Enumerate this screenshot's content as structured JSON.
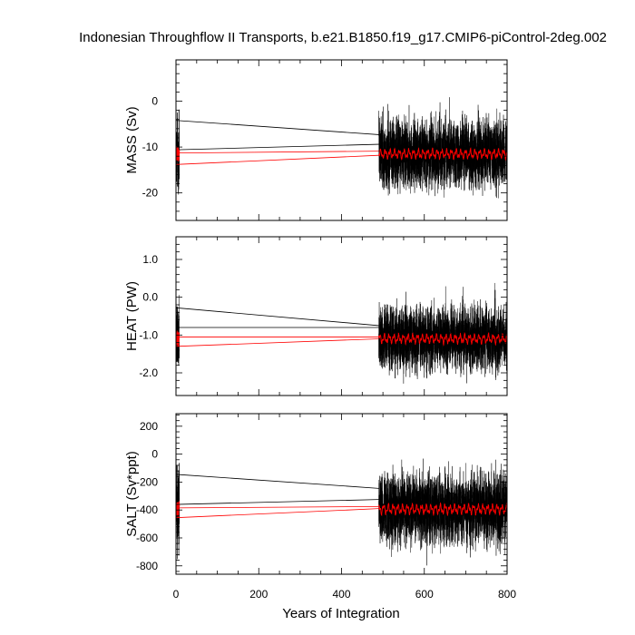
{
  "chart_data": {
    "title": "Indonesian Throughflow II Transports, b.e21.B1850.f19_g17.CMIP6-piControl-2deg.002",
    "xlabel": "Years of Integration",
    "xlim": [
      0,
      800
    ],
    "xticks": [
      "0",
      "200",
      "400",
      "600",
      "800"
    ],
    "colors": {
      "raw": "#000000",
      "smooth": "#ff0000"
    },
    "panels": [
      {
        "type": "line",
        "ylabel": "MASS (Sv)",
        "ylim": [
          -26,
          9
        ],
        "yticks": [
          {
            "v": 0,
            "label": "0"
          },
          {
            "v": -10,
            "label": "-10"
          },
          {
            "v": -20,
            "label": "-20"
          }
        ],
        "series": [
          {
            "role": "raw",
            "data_start": [
              [
                0,
                -16
              ],
              [
                8,
                -8
              ]
            ],
            "mean": -11.5,
            "amp": 4.0,
            "min": -23,
            "max": 8
          },
          {
            "role": "smooth",
            "mean": -11.5,
            "amp": 1.0
          }
        ],
        "connector_lines": [
          {
            "color": "raw",
            "x": [
              0,
              490
            ],
            "y": [
              -4.2,
              -7.3
            ]
          },
          {
            "color": "raw",
            "x": [
              0,
              490
            ],
            "y": [
              -10.6,
              -9.4
            ]
          },
          {
            "color": "smooth",
            "x": [
              0,
              490
            ],
            "y": [
              -11.3,
              -10.9
            ]
          },
          {
            "color": "smooth",
            "x": [
              0,
              490
            ],
            "y": [
              -13.8,
              -11.8
            ]
          }
        ]
      },
      {
        "type": "line",
        "ylabel": "HEAT (PW)",
        "ylim": [
          -2.6,
          1.6
        ],
        "yticks": [
          {
            "v": 1.0,
            "label": "1.0"
          },
          {
            "v": 0.0,
            "label": "0.0"
          },
          {
            "v": -1.0,
            "label": "-1.0"
          },
          {
            "v": -2.0,
            "label": "-2.0"
          }
        ],
        "series": [
          {
            "role": "raw",
            "mean": -1.1,
            "amp": 0.45,
            "min": -2.55,
            "max": 1.45
          },
          {
            "role": "smooth",
            "mean": -1.1,
            "amp": 0.12
          }
        ],
        "connector_lines": [
          {
            "color": "raw",
            "x": [
              0,
              490
            ],
            "y": [
              -0.28,
              -0.75
            ]
          },
          {
            "color": "raw",
            "x": [
              0,
              490
            ],
            "y": [
              -0.8,
              -0.8
            ]
          },
          {
            "color": "smooth",
            "x": [
              0,
              490
            ],
            "y": [
              -1.05,
              -1.05
            ]
          },
          {
            "color": "smooth",
            "x": [
              0,
              490
            ],
            "y": [
              -1.3,
              -1.1
            ]
          }
        ]
      },
      {
        "type": "line",
        "ylabel": "SALT (Sv*ppt)",
        "ylim": [
          -860,
          290
        ],
        "yticks": [
          {
            "v": 200,
            "label": "200"
          },
          {
            "v": 0,
            "label": "0"
          },
          {
            "v": -200,
            "label": "-200"
          },
          {
            "v": -400,
            "label": "-400"
          },
          {
            "v": -600,
            "label": "-600"
          },
          {
            "v": -800,
            "label": "-800"
          }
        ],
        "series": [
          {
            "role": "raw",
            "mean": -395,
            "amp": 140,
            "min": -800,
            "max": 260
          },
          {
            "role": "smooth",
            "mean": -395,
            "amp": 35
          }
        ],
        "connector_lines": [
          {
            "color": "raw",
            "x": [
              0,
              490
            ],
            "y": [
              -145,
              -245
            ]
          },
          {
            "color": "raw",
            "x": [
              0,
              490
            ],
            "y": [
              -360,
              -325
            ]
          },
          {
            "color": "smooth",
            "x": [
              0,
              490
            ],
            "y": [
              -385,
              -375
            ]
          },
          {
            "color": "smooth",
            "x": [
              0,
              490
            ],
            "y": [
              -455,
              -390
            ]
          }
        ]
      }
    ]
  }
}
